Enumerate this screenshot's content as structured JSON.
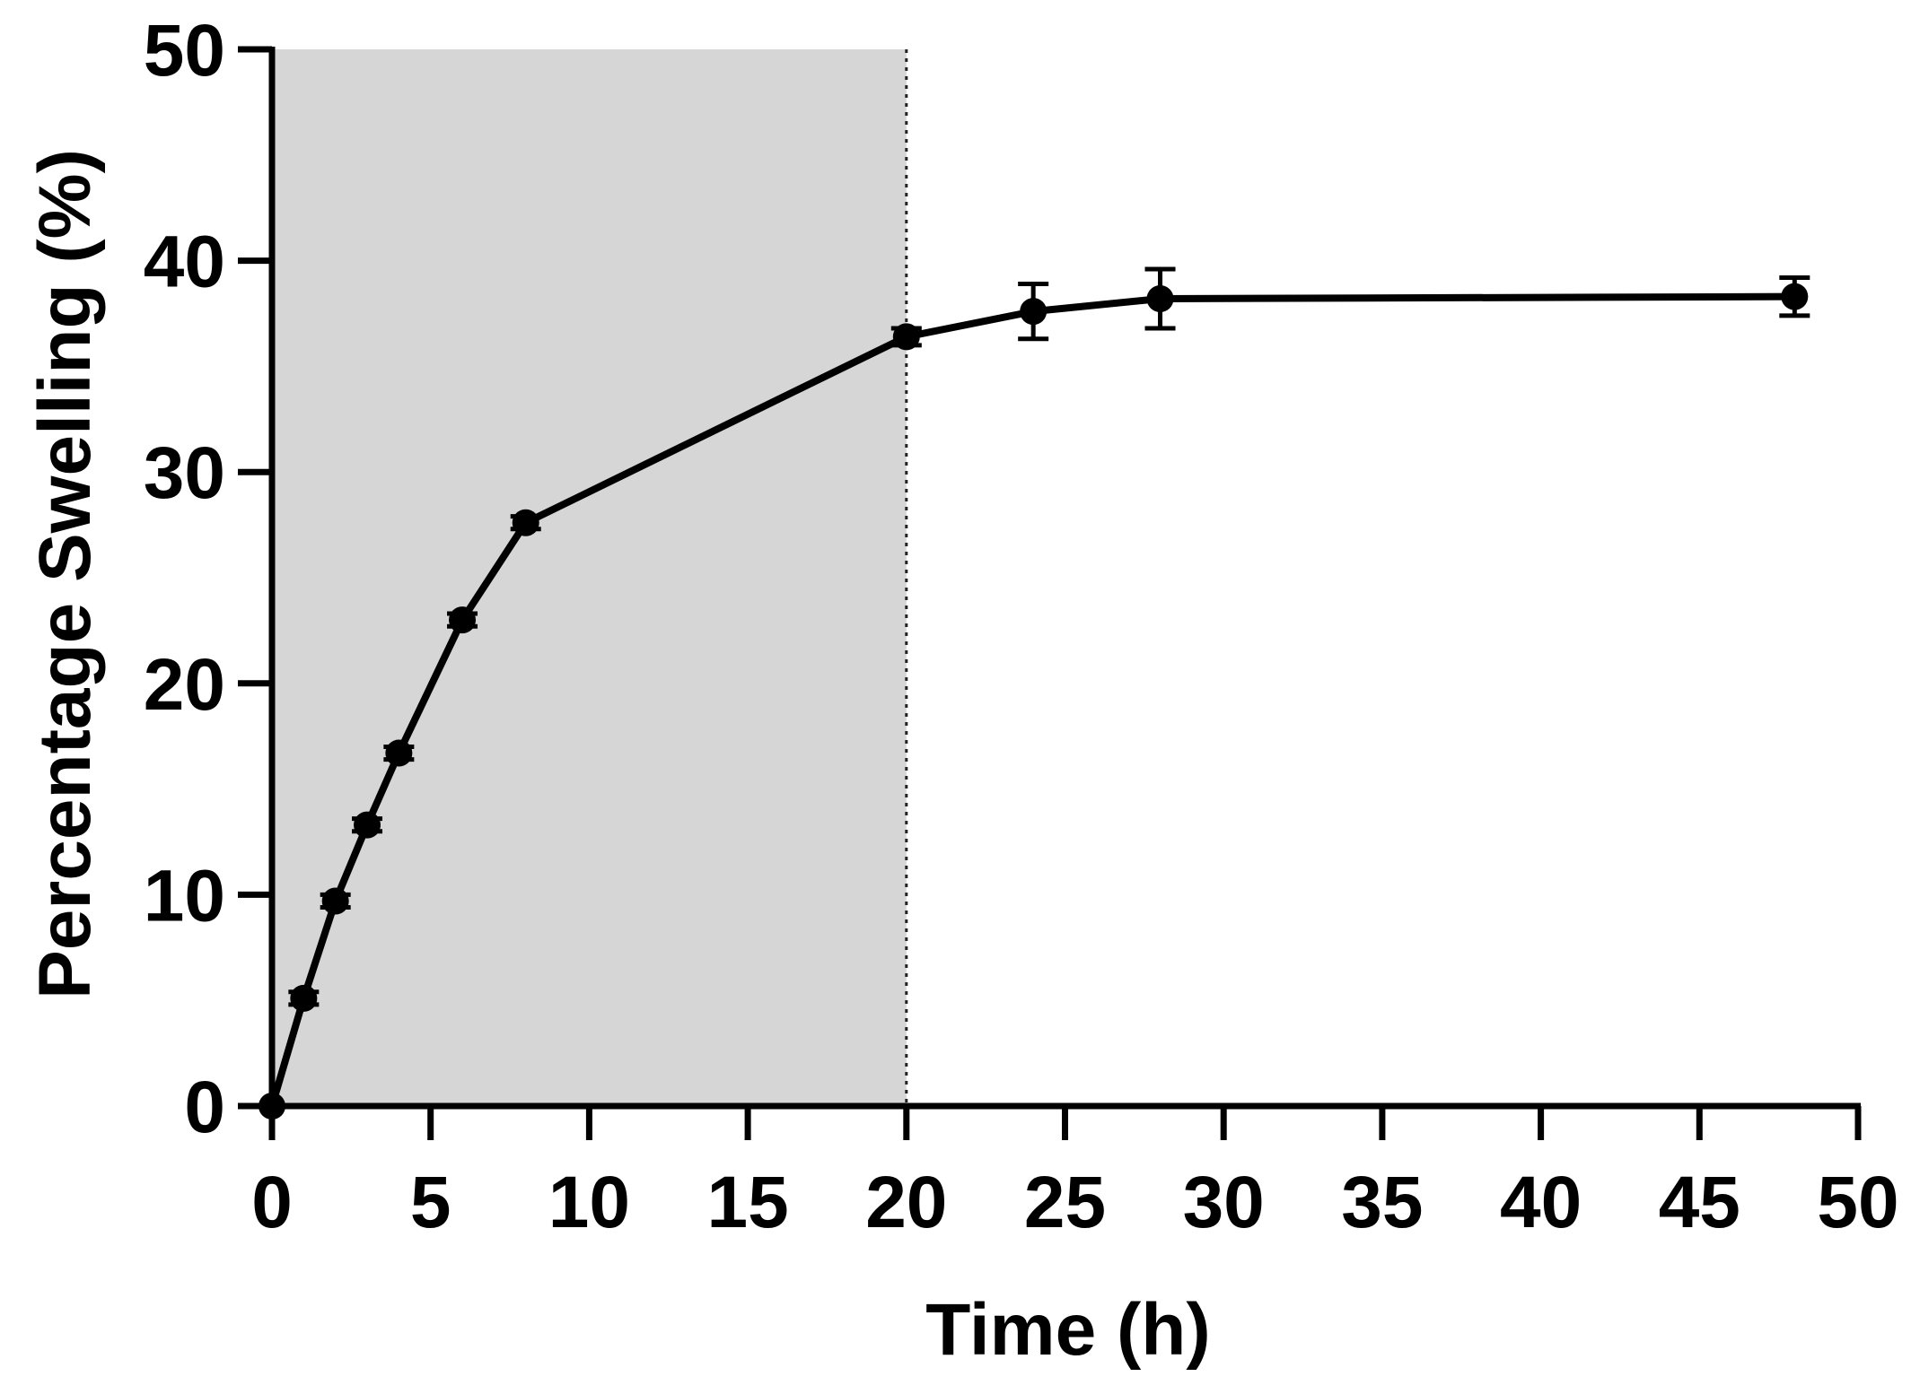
{
  "chart_data": {
    "type": "line",
    "xlabel": "Time (h)",
    "ylabel": "Percentage Swelling (%)",
    "xlim": [
      0,
      50
    ],
    "ylim": [
      0,
      50
    ],
    "x_ticks": [
      "0",
      "5",
      "10",
      "15",
      "20",
      "25",
      "30",
      "35",
      "40",
      "45",
      "50"
    ],
    "y_ticks": [
      "0",
      "10",
      "20",
      "30",
      "40",
      "50"
    ],
    "grid": false,
    "shaded_region": {
      "x_from": 0,
      "x_to": 20,
      "color": "#d6d6d6"
    },
    "reference_line": {
      "x": 20,
      "style": "dotted"
    },
    "series": [
      {
        "color": "#000000",
        "x": [
          0,
          1,
          2,
          3,
          4,
          6,
          8,
          20,
          24,
          28,
          48
        ],
        "y": [
          0,
          5.1,
          9.7,
          13.3,
          16.7,
          23.0,
          27.6,
          36.4,
          37.6,
          38.2,
          38.3
        ],
        "error": [
          0,
          0.3,
          0.3,
          0.3,
          0.3,
          0.3,
          0.3,
          0.4,
          1.3,
          1.4,
          0.9
        ]
      }
    ]
  }
}
